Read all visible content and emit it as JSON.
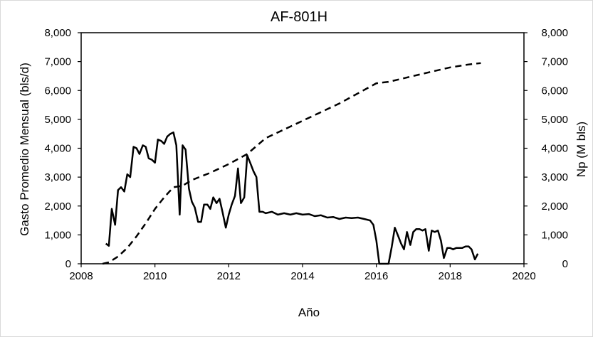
{
  "chart_data": {
    "type": "line",
    "title": "AF-801H",
    "xlabel": "Año",
    "ylabel_left": "Gasto  Promedio Mensual (bls/d)",
    "ylabel_right": "Np (M bls)",
    "xlim": [
      2008,
      2020
    ],
    "ylim_left": [
      0,
      8000
    ],
    "ylim_right": [
      0,
      8000
    ],
    "x_ticks": [
      "2008",
      "2010",
      "2012",
      "2014",
      "2016",
      "2018",
      "2020"
    ],
    "y_ticks_left": [
      "0",
      "1,000",
      "2,000",
      "3,000",
      "4,000",
      "5,000",
      "6,000",
      "7,000",
      "8,000"
    ],
    "y_ticks_right": [
      "0",
      "1,000",
      "2,000",
      "3,000",
      "4,000",
      "5,000",
      "6,000",
      "7,000",
      "8,000"
    ],
    "grid": false,
    "legend": "none",
    "series": [
      {
        "axis": "left",
        "style": "solid",
        "color": "#000000",
        "points": [
          [
            2008.67,
            700
          ],
          [
            2008.75,
            620
          ],
          [
            2008.83,
            1900
          ],
          [
            2008.92,
            1350
          ],
          [
            2009.0,
            2550
          ],
          [
            2009.08,
            2650
          ],
          [
            2009.17,
            2500
          ],
          [
            2009.25,
            3100
          ],
          [
            2009.33,
            3000
          ],
          [
            2009.42,
            4050
          ],
          [
            2009.5,
            4000
          ],
          [
            2009.58,
            3800
          ],
          [
            2009.67,
            4100
          ],
          [
            2009.75,
            4050
          ],
          [
            2009.83,
            3650
          ],
          [
            2009.92,
            3600
          ],
          [
            2010.0,
            3500
          ],
          [
            2010.08,
            4300
          ],
          [
            2010.17,
            4250
          ],
          [
            2010.25,
            4150
          ],
          [
            2010.33,
            4400
          ],
          [
            2010.42,
            4500
          ],
          [
            2010.5,
            4550
          ],
          [
            2010.58,
            4100
          ],
          [
            2010.67,
            1700
          ],
          [
            2010.75,
            4100
          ],
          [
            2010.83,
            3950
          ],
          [
            2010.92,
            2600
          ],
          [
            2011.0,
            2150
          ],
          [
            2011.08,
            1950
          ],
          [
            2011.17,
            1450
          ],
          [
            2011.25,
            1450
          ],
          [
            2011.33,
            2050
          ],
          [
            2011.42,
            2050
          ],
          [
            2011.5,
            1900
          ],
          [
            2011.58,
            2300
          ],
          [
            2011.67,
            2100
          ],
          [
            2011.75,
            2250
          ],
          [
            2011.83,
            1800
          ],
          [
            2011.92,
            1250
          ],
          [
            2012.0,
            1700
          ],
          [
            2012.08,
            2050
          ],
          [
            2012.17,
            2350
          ],
          [
            2012.25,
            3300
          ],
          [
            2012.33,
            2100
          ],
          [
            2012.42,
            2300
          ],
          [
            2012.5,
            3750
          ],
          [
            2012.58,
            3500
          ],
          [
            2012.67,
            3200
          ],
          [
            2012.75,
            3000
          ],
          [
            2012.83,
            1800
          ],
          [
            2012.92,
            1800
          ],
          [
            2013.0,
            1750
          ],
          [
            2013.17,
            1800
          ],
          [
            2013.33,
            1700
          ],
          [
            2013.5,
            1750
          ],
          [
            2013.67,
            1700
          ],
          [
            2013.83,
            1750
          ],
          [
            2014.0,
            1700
          ],
          [
            2014.17,
            1720
          ],
          [
            2014.33,
            1650
          ],
          [
            2014.5,
            1680
          ],
          [
            2014.67,
            1600
          ],
          [
            2014.83,
            1620
          ],
          [
            2015.0,
            1550
          ],
          [
            2015.17,
            1600
          ],
          [
            2015.33,
            1580
          ],
          [
            2015.5,
            1600
          ],
          [
            2015.67,
            1550
          ],
          [
            2015.83,
            1500
          ],
          [
            2015.92,
            1350
          ],
          [
            2016.0,
            800
          ],
          [
            2016.08,
            0
          ],
          [
            2016.33,
            0
          ],
          [
            2016.42,
            600
          ],
          [
            2016.5,
            1250
          ],
          [
            2016.58,
            1000
          ],
          [
            2016.67,
            700
          ],
          [
            2016.75,
            500
          ],
          [
            2016.83,
            1100
          ],
          [
            2016.92,
            650
          ],
          [
            2017.0,
            1100
          ],
          [
            2017.08,
            1200
          ],
          [
            2017.17,
            1200
          ],
          [
            2017.25,
            1150
          ],
          [
            2017.33,
            1200
          ],
          [
            2017.42,
            450
          ],
          [
            2017.5,
            1150
          ],
          [
            2017.58,
            1100
          ],
          [
            2017.67,
            1150
          ],
          [
            2017.75,
            800
          ],
          [
            2017.83,
            200
          ],
          [
            2017.92,
            550
          ],
          [
            2018.0,
            550
          ],
          [
            2018.08,
            500
          ],
          [
            2018.17,
            550
          ],
          [
            2018.25,
            550
          ],
          [
            2018.33,
            550
          ],
          [
            2018.42,
            600
          ],
          [
            2018.5,
            600
          ],
          [
            2018.58,
            500
          ],
          [
            2018.67,
            150
          ],
          [
            2018.75,
            350
          ]
        ]
      },
      {
        "axis": "right",
        "style": "dashed",
        "color": "#000000",
        "points": [
          [
            2008.58,
            0
          ],
          [
            2008.75,
            50
          ],
          [
            2009.0,
            250
          ],
          [
            2009.25,
            550
          ],
          [
            2009.5,
            950
          ],
          [
            2009.75,
            1400
          ],
          [
            2010.0,
            1900
          ],
          [
            2010.25,
            2300
          ],
          [
            2010.5,
            2650
          ],
          [
            2010.75,
            2700
          ],
          [
            2011.0,
            2900
          ],
          [
            2011.5,
            3150
          ],
          [
            2012.0,
            3450
          ],
          [
            2012.5,
            3800
          ],
          [
            2013.0,
            4350
          ],
          [
            2013.5,
            4650
          ],
          [
            2014.0,
            4950
          ],
          [
            2014.5,
            5250
          ],
          [
            2015.0,
            5550
          ],
          [
            2015.5,
            5900
          ],
          [
            2016.0,
            6250
          ],
          [
            2016.33,
            6300
          ],
          [
            2016.67,
            6400
          ],
          [
            2017.0,
            6500
          ],
          [
            2017.5,
            6650
          ],
          [
            2018.0,
            6800
          ],
          [
            2018.5,
            6900
          ],
          [
            2018.83,
            6950
          ]
        ]
      }
    ]
  }
}
